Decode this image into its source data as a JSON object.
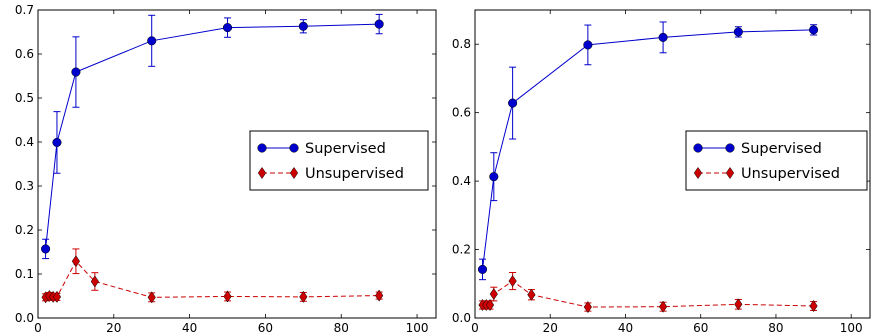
{
  "chart_data": [
    {
      "type": "line",
      "xlim": [
        0,
        105
      ],
      "ylim": [
        0,
        0.7
      ],
      "xticks": [
        0,
        20,
        40,
        60,
        80,
        100
      ],
      "xtick_labels": [
        "0",
        "20",
        "40",
        "60",
        "80",
        "100"
      ],
      "yticks": [
        0,
        0.1,
        0.2,
        0.3,
        0.4,
        0.5,
        0.6,
        0.7
      ],
      "ytick_labels": [
        "0.0",
        "0.1",
        "0.2",
        "0.3",
        "0.4",
        "0.5",
        "0.6",
        "0.7"
      ],
      "grid": false,
      "legend_position": "center-right",
      "series": [
        {
          "name": "Supervised",
          "color": "#0000cc",
          "marker": "circle",
          "linestyle": "solid",
          "x": [
            2,
            5,
            10,
            30,
            50,
            70,
            90
          ],
          "y": [
            0.157,
            0.399,
            0.559,
            0.63,
            0.66,
            0.663,
            0.668
          ],
          "err": [
            0.022,
            0.07,
            0.08,
            0.058,
            0.022,
            0.015,
            0.022
          ]
        },
        {
          "name": "Unsupervised",
          "color": "#cc0000",
          "marker": "diamond",
          "linestyle": "dashed",
          "x": [
            2,
            3,
            4,
            5,
            10,
            15,
            30,
            50,
            70,
            90
          ],
          "y": [
            0.047,
            0.05,
            0.048,
            0.048,
            0.129,
            0.083,
            0.047,
            0.049,
            0.048,
            0.051
          ],
          "err": [
            0.008,
            0.008,
            0.008,
            0.008,
            0.028,
            0.02,
            0.01,
            0.01,
            0.01,
            0.008
          ]
        }
      ]
    },
    {
      "type": "line",
      "xlim": [
        0,
        105
      ],
      "ylim": [
        0,
        0.9
      ],
      "xticks": [
        0,
        20,
        40,
        60,
        80,
        100
      ],
      "xtick_labels": [
        "0",
        "20",
        "40",
        "60",
        "80",
        "100"
      ],
      "yticks": [
        0,
        0.2,
        0.4,
        0.6,
        0.8
      ],
      "ytick_labels": [
        "0.0",
        "0.2",
        "0.4",
        "0.6",
        "0.8"
      ],
      "grid": false,
      "legend_position": "center-right",
      "series": [
        {
          "name": "Supervised",
          "color": "#0000cc",
          "marker": "circle",
          "linestyle": "solid",
          "x": [
            2,
            5,
            10,
            30,
            50,
            70,
            90
          ],
          "y": [
            0.142,
            0.413,
            0.628,
            0.798,
            0.82,
            0.836,
            0.842
          ],
          "err": [
            0.03,
            0.07,
            0.105,
            0.058,
            0.045,
            0.015,
            0.015
          ]
        },
        {
          "name": "Unsupervised",
          "color": "#cc0000",
          "marker": "diamond",
          "linestyle": "dashed",
          "x": [
            2,
            3,
            4,
            5,
            10,
            15,
            30,
            50,
            70,
            90
          ],
          "y": [
            0.038,
            0.038,
            0.038,
            0.07,
            0.108,
            0.068,
            0.032,
            0.033,
            0.04,
            0.035
          ],
          "err": [
            0.012,
            0.012,
            0.012,
            0.02,
            0.025,
            0.015,
            0.012,
            0.013,
            0.014,
            0.013
          ]
        }
      ]
    }
  ]
}
